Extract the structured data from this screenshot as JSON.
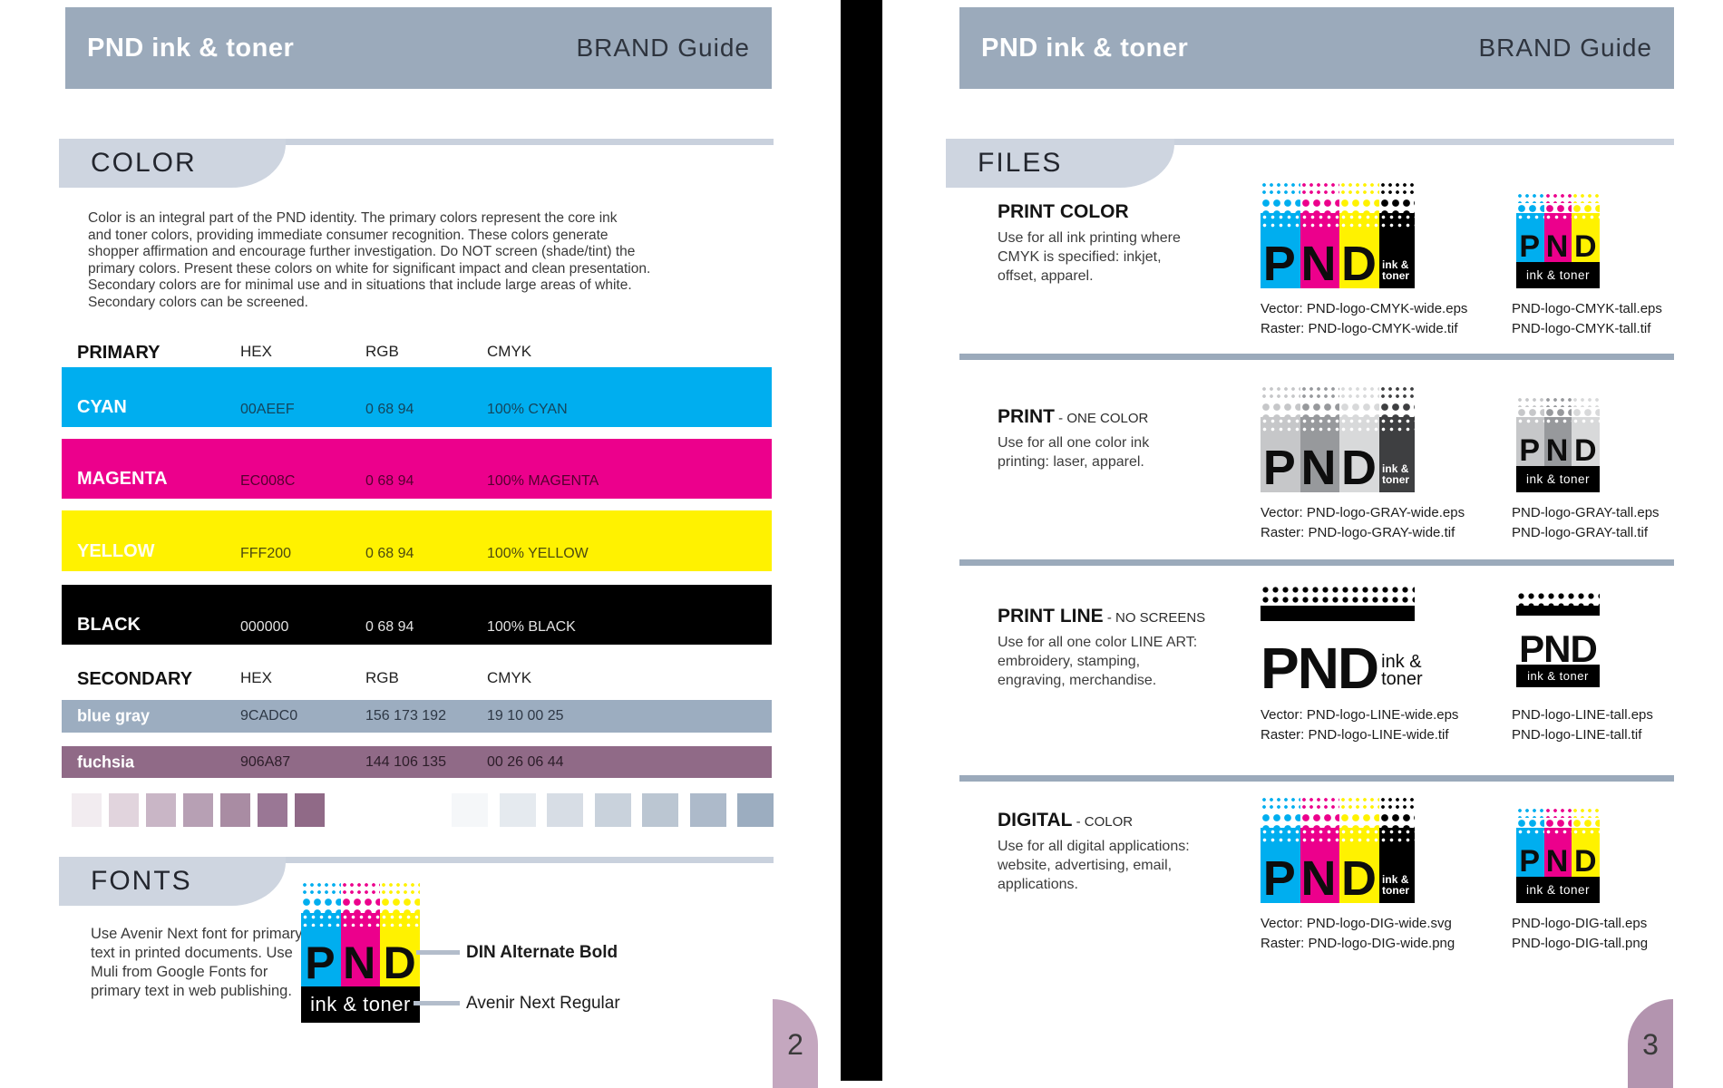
{
  "brand": {
    "letters": [
      "P",
      "N",
      "D"
    ],
    "tagline": "ink & toner",
    "tagline_two_line": "ink &\ntoner"
  },
  "colors": {
    "cyan": "#00AEEF",
    "magenta": "#EC008C",
    "yellow": "#FFF200",
    "black": "#000000",
    "blue_gray": "#9CADC0",
    "fuchsia": "#906A87",
    "header_bar": "#9BAABB",
    "tab_fill": "#CED5E0",
    "section_line": "#C9D1DD",
    "page2_tab": "#C4A7BF",
    "page3_tab": "#B394AF",
    "gray_logo_stripes": [
      "#C6C7C9",
      "#97999C",
      "#D8D9DA"
    ],
    "gray_logo_dark": "#3E3F41"
  },
  "left_page": {
    "header": {
      "title": "PND ink & toner",
      "subtitle": "BRAND Guide"
    },
    "color_section": {
      "tab_label": "COLOR",
      "intro": "Color is an integral part of the PND identity. The primary colors represent the core ink\nand toner colors, providing immediate consumer recognition. These colors generate\nshopper affirmation and encourage further investigation. Do NOT screen (shade/tint) the\nprimary colors. Present these colors on white for significant impact and clean presentation.\nSecondary colors are for minimal use and in situations that include large areas of white.\nSecondary colors can be screened.",
      "primary": {
        "label": "PRIMARY",
        "col_hex": "HEX",
        "col_rgb": "RGB",
        "col_cmyk": "CMYK",
        "rows": [
          {
            "name": "CYAN",
            "hex": "00AEEF",
            "rgb": "0 68 94",
            "cmyk": "100% CYAN"
          },
          {
            "name": "MAGENTA",
            "hex": "EC008C",
            "rgb": "0 68 94",
            "cmyk": "100% MAGENTA"
          },
          {
            "name": "YELLOW",
            "hex": "FFF200",
            "rgb": "0 68 94",
            "cmyk": "100% YELLOW"
          },
          {
            "name": "BLACK",
            "hex": "000000",
            "rgb": "0 68 94",
            "cmyk": "100% BLACK"
          }
        ]
      },
      "secondary": {
        "label": "SECONDARY",
        "col_hex": "HEX",
        "col_rgb": "RGB",
        "col_cmyk": "CMYK",
        "rows": [
          {
            "name": "blue gray",
            "hex": "9CADC0",
            "rgb": "156 173 192",
            "cmyk": "19 10 00 25"
          },
          {
            "name": "fuchsia",
            "hex": "906A87",
            "rgb": "144 106 135",
            "cmyk": "00 26 06 44"
          }
        ]
      },
      "fuchsia_tints": [
        "#F2ECF0",
        "#E1D4DD",
        "#C9B6C6",
        "#B7A0B4",
        "#A98CA3",
        "#9A7795",
        "#906A87"
      ],
      "blue_gray_tints": [
        "#F5F7F9",
        "#E5EAEF",
        "#D7DDE5",
        "#C9D2DC",
        "#BBC6D2",
        "#ADBACA",
        "#9CADC0"
      ]
    },
    "fonts_section": {
      "tab_label": "FONTS",
      "body": "Use Avenir Next font for primary\ntext in printed documents. Use\nMuli from Google Fonts for\nprimary text in web publishing.",
      "callout_bold": "DIN Alternate Bold",
      "callout_regular": "Avenir Next Regular"
    },
    "page_number": "2"
  },
  "right_page": {
    "header": {
      "title": "PND ink & toner",
      "subtitle": "BRAND Guide"
    },
    "files_section": {
      "tab_label": "FILES",
      "rows": [
        {
          "heading": "PRINT COLOR",
          "suffix": "",
          "description": "Use for all ink printing where\nCMYK is specified: inkjet,\noffset, apparel.",
          "wide_caption1": "Vector: PND-logo-CMYK-wide.eps",
          "wide_caption2": "Raster: PND-logo-CMYK-wide.tif",
          "tall_caption1": "PND-logo-CMYK-tall.eps",
          "tall_caption2": "PND-logo-CMYK-tall.tif"
        },
        {
          "heading": "PRINT",
          "suffix": " - ONE COLOR",
          "description": "Use for all one color ink\nprinting: laser, apparel.",
          "wide_caption1": "Vector: PND-logo-GRAY-wide.eps",
          "wide_caption2": "Raster: PND-logo-GRAY-wide.tif",
          "tall_caption1": "PND-logo-GRAY-tall.eps",
          "tall_caption2": "PND-logo-GRAY-tall.tif"
        },
        {
          "heading": "PRINT LINE",
          "suffix": " - NO SCREENS",
          "description": "Use for all one color LINE ART:\nembroidery, stamping,\nengraving, merchandise.",
          "wide_caption1": "Vector: PND-logo-LINE-wide.eps",
          "wide_caption2": "Raster: PND-logo-LINE-wide.tif",
          "tall_caption1": "PND-logo-LINE-tall.eps",
          "tall_caption2": "PND-logo-LINE-tall.tif"
        },
        {
          "heading": "DIGITAL",
          "suffix": " - COLOR",
          "description": "Use for all digital applications:\nwebsite, advertising, email,\napplications.",
          "wide_caption1": "Vector: PND-logo-DIG-wide.svg",
          "wide_caption2": "Raster: PND-logo-DIG-wide.png",
          "tall_caption1": "PND-logo-DIG-tall.eps",
          "tall_caption2": "PND-logo-DIG-tall.png"
        }
      ]
    },
    "page_number": "3"
  }
}
